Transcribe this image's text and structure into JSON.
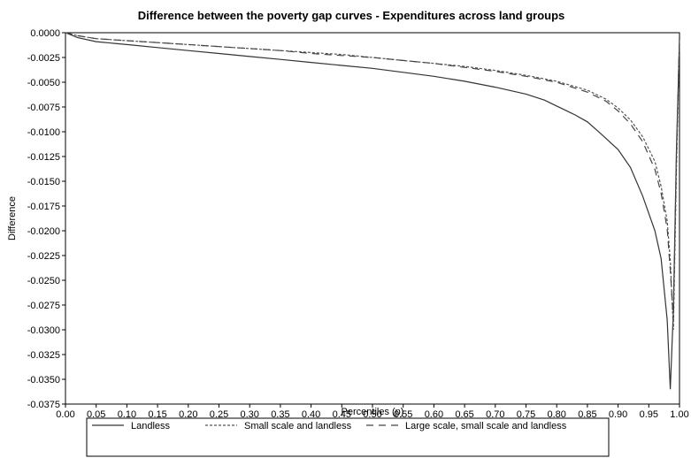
{
  "chart_data": {
    "type": "line",
    "title": "Difference between the poverty gap curves - Expenditures across land groups",
    "xlabel": "Percentiles (p)",
    "ylabel": "Difference",
    "xlim": [
      0,
      1
    ],
    "ylim": [
      -0.0375,
      0
    ],
    "x_ticks": [
      "0.00",
      "0.05",
      "0.10",
      "0.15",
      "0.20",
      "0.25",
      "0.30",
      "0.35",
      "0.40",
      "0.45",
      "0.50",
      "0.55",
      "0.60",
      "0.65",
      "0.70",
      "0.75",
      "0.80",
      "0.85",
      "0.90",
      "0.95",
      "1.00"
    ],
    "y_ticks": [
      "0.0000",
      "-0.0025",
      "-0.0050",
      "-0.0075",
      "-0.0100",
      "-0.0125",
      "-0.0150",
      "-0.0175",
      "-0.0200",
      "-0.0225",
      "-0.0250",
      "-0.0275",
      "-0.0300",
      "-0.0325",
      "-0.0350",
      "-0.0375"
    ],
    "grid": false,
    "legend_position": "bottom",
    "series": [
      {
        "name": "Landless",
        "style": "solid",
        "color": "#333333",
        "x": [
          0,
          0.02,
          0.05,
          0.1,
          0.15,
          0.2,
          0.25,
          0.3,
          0.35,
          0.4,
          0.45,
          0.5,
          0.55,
          0.6,
          0.65,
          0.7,
          0.75,
          0.78,
          0.8,
          0.83,
          0.85,
          0.87,
          0.9,
          0.92,
          0.94,
          0.96,
          0.97,
          0.98,
          0.985,
          0.99,
          0.995,
          1.0
        ],
        "y": [
          0,
          -0.0005,
          -0.0009,
          -0.0012,
          -0.0015,
          -0.0018,
          -0.0021,
          -0.0024,
          -0.0027,
          -0.003,
          -0.0033,
          -0.0036,
          -0.004,
          -0.0044,
          -0.0049,
          -0.0055,
          -0.0062,
          -0.0068,
          -0.0074,
          -0.0083,
          -0.009,
          -0.0101,
          -0.0118,
          -0.0136,
          -0.0165,
          -0.02,
          -0.0228,
          -0.029,
          -0.036,
          -0.028,
          -0.012,
          -0.0005
        ]
      },
      {
        "name": "Small scale and landless",
        "style": "dotted",
        "color": "#555555",
        "x": [
          0,
          0.02,
          0.05,
          0.1,
          0.15,
          0.2,
          0.25,
          0.3,
          0.35,
          0.4,
          0.45,
          0.5,
          0.55,
          0.6,
          0.65,
          0.7,
          0.75,
          0.8,
          0.85,
          0.88,
          0.9,
          0.92,
          0.94,
          0.96,
          0.97,
          0.98,
          0.985,
          0.99,
          0.995,
          1.0
        ],
        "y": [
          0,
          -0.0003,
          -0.0006,
          -0.0008,
          -0.001,
          -0.0012,
          -0.0014,
          -0.0016,
          -0.0018,
          -0.002,
          -0.0022,
          -0.0025,
          -0.0028,
          -0.0031,
          -0.0034,
          -0.0038,
          -0.0043,
          -0.0049,
          -0.0058,
          -0.0067,
          -0.0076,
          -0.0088,
          -0.0105,
          -0.013,
          -0.0155,
          -0.019,
          -0.023,
          -0.03,
          -0.014,
          -0.0005
        ]
      },
      {
        "name": "Large scale, small scale and landless",
        "style": "dashed",
        "color": "#444444",
        "x": [
          0,
          0.02,
          0.05,
          0.1,
          0.15,
          0.2,
          0.25,
          0.3,
          0.35,
          0.4,
          0.45,
          0.5,
          0.55,
          0.6,
          0.65,
          0.7,
          0.75,
          0.8,
          0.85,
          0.88,
          0.9,
          0.92,
          0.94,
          0.96,
          0.97,
          0.98,
          0.985,
          0.99,
          0.995,
          1.0
        ],
        "y": [
          0,
          -0.0003,
          -0.0006,
          -0.0008,
          -0.001,
          -0.0012,
          -0.0014,
          -0.0016,
          -0.0018,
          -0.0021,
          -0.0023,
          -0.0025,
          -0.0028,
          -0.0031,
          -0.0035,
          -0.0039,
          -0.0044,
          -0.005,
          -0.006,
          -0.0069,
          -0.0079,
          -0.0092,
          -0.011,
          -0.0138,
          -0.0162,
          -0.0198,
          -0.024,
          -0.029,
          -0.013,
          -0.0005
        ]
      }
    ]
  }
}
